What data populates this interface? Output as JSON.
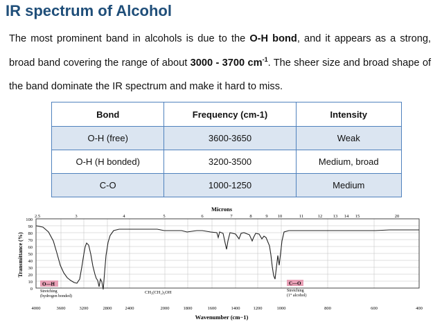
{
  "title": "IR spectrum of Alcohol",
  "intro": {
    "t1": "The most prominent band in alcohols is due to the ",
    "bond": "O-H bond",
    "t2": ", and it appears as a strong, broad band covering the range of about ",
    "range": "3000 - 3700 cm",
    "sup": "-1",
    "t3": ". The sheer size and broad shape of the band dominate the IR spectrum and make it hard to miss."
  },
  "table": {
    "headers": [
      "Bond",
      "Frequency (cm-1)",
      "Intensity"
    ],
    "rows": [
      [
        "O-H (free)",
        "3600-3650",
        "Weak"
      ],
      [
        "O-H (H bonded)",
        "3200-3500",
        "Medium, broad"
      ],
      [
        "C-O",
        "1000-1250",
        "Medium"
      ]
    ]
  },
  "spectrum": {
    "top_label": "Microns",
    "micron_ticks": [
      "2.5",
      "3",
      "4",
      "5",
      "6",
      "7",
      "8",
      "9",
      "10",
      "11",
      "12",
      "13",
      "14",
      "15",
      "20"
    ],
    "y_label": "Transmittance (%)",
    "y_ticks": [
      "100",
      "90",
      "80",
      "70",
      "60",
      "50",
      "40",
      "30",
      "20",
      "10",
      "0"
    ],
    "x_label": "Wavenumber (cm−1)",
    "x_ticks": [
      "4000",
      "3600",
      "3200",
      "2800",
      "2400",
      "2000",
      "1800",
      "1600",
      "1400",
      "1200",
      "1000",
      "800",
      "600",
      "400"
    ],
    "oh_box": "O—H",
    "oh_note1": "Stretching",
    "oh_note2": "(hydrogen bonded)",
    "formula": "CH₃(CH₂)₃OH",
    "co_box": "C—O",
    "co_note1": "Stretching",
    "co_note2": "(1° alcohol)",
    "colors": {
      "label_box": "#e8a0b6",
      "curve": "#222222"
    }
  }
}
